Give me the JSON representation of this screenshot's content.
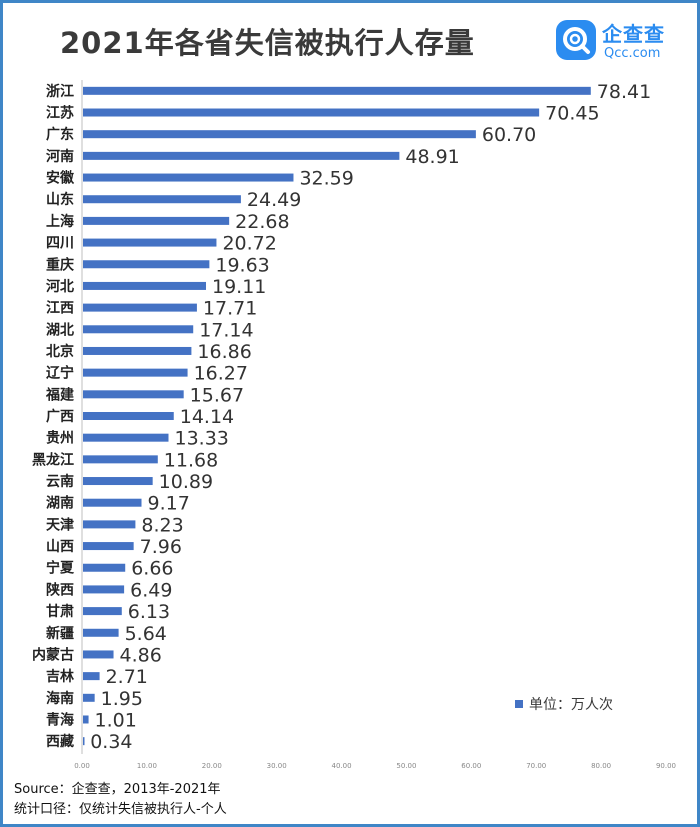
{
  "header": {
    "title": "2021年各省失信被执行人存量",
    "brand_name": "企查查",
    "brand_domain": "Qcc.com"
  },
  "legend": {
    "label": "单位：万人次"
  },
  "footer": {
    "source": "Source：企查查，2013年-2021年",
    "scope": "统计口径：仅统计失信被执行人-个人"
  },
  "colors": {
    "bar": "#4472c4",
    "frame": "#3f86c7",
    "brand": "#2b8cf0"
  },
  "chart_data": {
    "type": "bar",
    "orientation": "horizontal",
    "categories": [
      "浙江",
      "江苏",
      "广东",
      "河南",
      "安徽",
      "山东",
      "上海",
      "四川",
      "重庆",
      "河北",
      "江西",
      "湖北",
      "北京",
      "辽宁",
      "福建",
      "广西",
      "贵州",
      "黑龙江",
      "云南",
      "湖南",
      "天津",
      "山西",
      "宁夏",
      "陕西",
      "甘肃",
      "新疆",
      "内蒙古",
      "吉林",
      "海南",
      "青海",
      "西藏"
    ],
    "value_labels": [
      "78.41",
      "70.45",
      "60.70",
      "48.91",
      "32.59",
      "24.49",
      "22.68",
      "20.72",
      "19.63",
      "19.11",
      "17.71",
      "17.14",
      "16.86",
      "16.27",
      "15.67",
      "14.14",
      "13.33",
      "11.68",
      "10.89",
      "9.17",
      "8.23",
      "7.96",
      "6.66",
      "6.49",
      "6.13",
      "5.64",
      "4.86",
      "2.71",
      "1.95",
      "1.01",
      "0.34"
    ],
    "values": [
      78.41,
      70.45,
      60.7,
      48.91,
      32.59,
      24.49,
      22.68,
      20.72,
      19.63,
      19.11,
      17.71,
      17.14,
      16.86,
      16.27,
      15.67,
      14.14,
      13.33,
      11.68,
      10.89,
      9.17,
      8.23,
      7.96,
      6.66,
      6.49,
      6.13,
      5.64,
      4.86,
      2.71,
      1.95,
      1.01,
      0.34
    ],
    "xlim": [
      0,
      90
    ],
    "xticks": [
      "0.00",
      "10.00",
      "20.00",
      "30.00",
      "40.00",
      "50.00",
      "60.00",
      "70.00",
      "80.00",
      "90.00"
    ],
    "grid": false,
    "legend_position": "bottom-right"
  }
}
